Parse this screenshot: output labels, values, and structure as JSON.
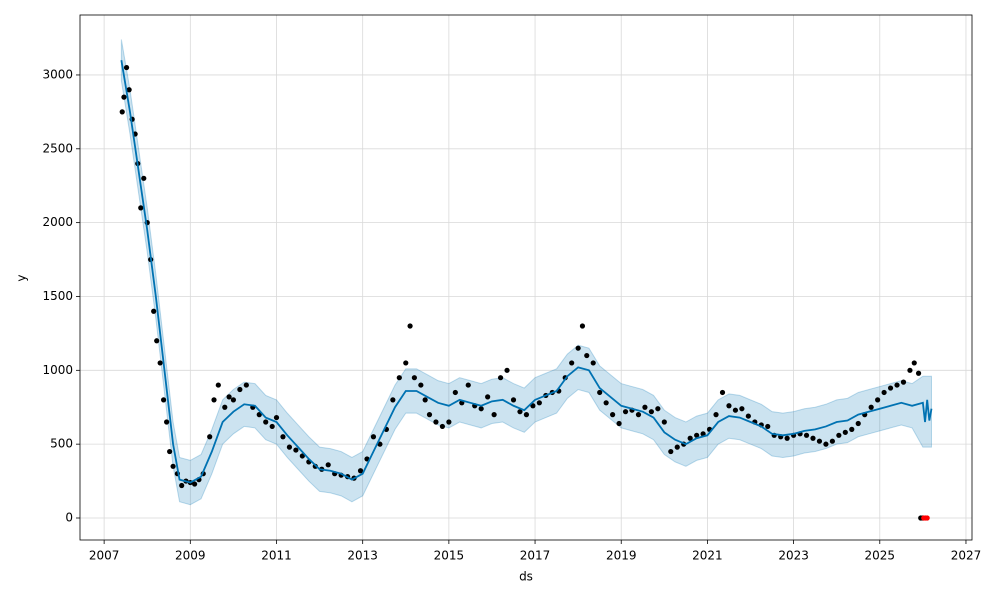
{
  "chart_data": {
    "type": "forecast",
    "x_label": "ds",
    "y_label": "y",
    "xlim": [
      2006.44,
      2027.14
    ],
    "ylim": [
      -149,
      3406
    ],
    "xticks": [
      2007,
      2009,
      2011,
      2013,
      2015,
      2017,
      2019,
      2021,
      2023,
      2025,
      2027
    ],
    "yticks": [
      0,
      500,
      1000,
      1500,
      2000,
      2500,
      3000
    ],
    "grid": true,
    "observed": {
      "color": "#000000",
      "x": [
        2007.42,
        2007.46,
        2007.52,
        2007.58,
        2007.65,
        2007.72,
        2007.78,
        2007.85,
        2007.92,
        2008.0,
        2008.08,
        2008.15,
        2008.22,
        2008.3,
        2008.38,
        2008.45,
        2008.52,
        2008.6,
        2008.7,
        2008.8,
        2008.9,
        2009.0,
        2009.1,
        2009.2,
        2009.3,
        2009.45,
        2009.55,
        2009.65,
        2009.8,
        2009.9,
        2010.0,
        2010.15,
        2010.3,
        2010.45,
        2010.6,
        2010.75,
        2010.9,
        2011.0,
        2011.15,
        2011.3,
        2011.45,
        2011.6,
        2011.75,
        2011.9,
        2012.05,
        2012.2,
        2012.35,
        2012.5,
        2012.65,
        2012.8,
        2012.95,
        2013.1,
        2013.25,
        2013.4,
        2013.55,
        2013.7,
        2013.85,
        2014.0,
        2014.1,
        2014.2,
        2014.35,
        2014.45,
        2014.55,
        2014.7,
        2014.85,
        2015.0,
        2015.15,
        2015.3,
        2015.45,
        2015.6,
        2015.75,
        2015.9,
        2016.05,
        2016.2,
        2016.35,
        2016.5,
        2016.65,
        2016.8,
        2016.95,
        2017.1,
        2017.25,
        2017.4,
        2017.55,
        2017.7,
        2017.85,
        2018.0,
        2018.1,
        2018.2,
        2018.35,
        2018.5,
        2018.65,
        2018.8,
        2018.95,
        2019.1,
        2019.25,
        2019.4,
        2019.55,
        2019.7,
        2019.85,
        2020.0,
        2020.15,
        2020.3,
        2020.45,
        2020.6,
        2020.75,
        2020.9,
        2021.05,
        2021.2,
        2021.35,
        2021.5,
        2021.65,
        2021.8,
        2021.95,
        2022.1,
        2022.25,
        2022.4,
        2022.55,
        2022.7,
        2022.85,
        2023.0,
        2023.15,
        2023.3,
        2023.45,
        2023.6,
        2023.75,
        2023.9,
        2024.05,
        2024.2,
        2024.35,
        2024.5,
        2024.65,
        2024.8,
        2024.95,
        2025.1,
        2025.25,
        2025.4,
        2025.55,
        2025.7,
        2025.8,
        2025.9,
        2025.95,
        2026.0
      ],
      "values": [
        2750,
        2850,
        3050,
        2900,
        2700,
        2600,
        2400,
        2100,
        2300,
        2000,
        1750,
        1400,
        1200,
        1050,
        800,
        650,
        450,
        350,
        300,
        220,
        250,
        240,
        230,
        260,
        300,
        550,
        800,
        900,
        750,
        820,
        800,
        870,
        900,
        750,
        700,
        650,
        620,
        680,
        550,
        480,
        460,
        420,
        380,
        350,
        330,
        360,
        300,
        290,
        280,
        270,
        320,
        400,
        550,
        500,
        600,
        800,
        950,
        1050,
        1300,
        950,
        900,
        800,
        700,
        650,
        620,
        650,
        850,
        780,
        900,
        760,
        740,
        820,
        700,
        950,
        1000,
        800,
        720,
        700,
        760,
        780,
        830,
        850,
        860,
        950,
        1050,
        1150,
        1300,
        1100,
        1050,
        850,
        780,
        700,
        640,
        720,
        730,
        700,
        750,
        720,
        740,
        650,
        450,
        480,
        500,
        540,
        560,
        570,
        600,
        700,
        850,
        760,
        730,
        740,
        690,
        650,
        630,
        620,
        560,
        550,
        540,
        560,
        570,
        560,
        540,
        520,
        500,
        520,
        560,
        580,
        600,
        640,
        700,
        750,
        800,
        850,
        880,
        900,
        920,
        1000,
        1050,
        980,
        0,
        0
      ]
    },
    "future": {
      "color": "#ff0000",
      "x": [
        2026.02,
        2026.06,
        2026.1
      ],
      "values": [
        0,
        0,
        0
      ]
    },
    "forecast": {
      "color": "#0072B2",
      "band_color": "#0072B2",
      "x": [
        2007.4,
        2007.6,
        2007.8,
        2008.0,
        2008.2,
        2008.4,
        2008.6,
        2008.75,
        2009.0,
        2009.25,
        2009.5,
        2009.75,
        2010.0,
        2010.25,
        2010.5,
        2010.75,
        2011.0,
        2011.25,
        2011.5,
        2011.75,
        2012.0,
        2012.25,
        2012.5,
        2012.75,
        2013.0,
        2013.25,
        2013.5,
        2013.75,
        2014.0,
        2014.25,
        2014.5,
        2014.75,
        2015.0,
        2015.25,
        2015.5,
        2015.75,
        2016.0,
        2016.25,
        2016.5,
        2016.75,
        2017.0,
        2017.25,
        2017.5,
        2017.75,
        2018.0,
        2018.25,
        2018.5,
        2018.75,
        2019.0,
        2019.25,
        2019.5,
        2019.75,
        2020.0,
        2020.25,
        2020.5,
        2020.75,
        2021.0,
        2021.25,
        2021.5,
        2021.75,
        2022.0,
        2022.25,
        2022.5,
        2022.75,
        2023.0,
        2023.25,
        2023.5,
        2023.75,
        2024.0,
        2024.25,
        2024.5,
        2024.75,
        2025.0,
        2025.25,
        2025.5,
        2025.75,
        2026.0,
        2026.05,
        2026.1,
        2026.15,
        2026.2
      ],
      "values": [
        3100,
        2750,
        2350,
        1950,
        1500,
        1000,
        500,
        260,
        240,
        280,
        450,
        650,
        720,
        770,
        760,
        680,
        650,
        560,
        480,
        400,
        330,
        320,
        300,
        260,
        300,
        450,
        600,
        750,
        860,
        860,
        820,
        780,
        760,
        800,
        780,
        760,
        790,
        800,
        760,
        730,
        800,
        830,
        860,
        960,
        1020,
        1000,
        880,
        820,
        760,
        740,
        720,
        680,
        580,
        530,
        500,
        540,
        560,
        650,
        690,
        680,
        650,
        620,
        570,
        560,
        570,
        590,
        600,
        620,
        650,
        660,
        700,
        720,
        740,
        760,
        780,
        760,
        780,
        650,
        800,
        660,
        740
      ],
      "upper": [
        3240,
        2900,
        2500,
        2100,
        1650,
        1150,
        650,
        410,
        390,
        430,
        600,
        800,
        870,
        920,
        910,
        830,
        800,
        710,
        630,
        550,
        480,
        470,
        450,
        410,
        450,
        600,
        750,
        900,
        1010,
        1010,
        970,
        930,
        910,
        950,
        930,
        910,
        940,
        950,
        910,
        880,
        950,
        980,
        1010,
        1110,
        1170,
        1150,
        1030,
        970,
        910,
        890,
        870,
        830,
        730,
        680,
        650,
        690,
        710,
        800,
        840,
        830,
        800,
        770,
        720,
        710,
        720,
        740,
        750,
        770,
        800,
        810,
        850,
        870,
        890,
        910,
        930,
        910,
        960,
        960,
        960,
        960,
        960
      ],
      "lower": [
        2960,
        2600,
        2200,
        1800,
        1350,
        850,
        350,
        110,
        90,
        130,
        300,
        500,
        570,
        620,
        610,
        530,
        500,
        410,
        330,
        250,
        180,
        170,
        150,
        110,
        150,
        300,
        450,
        600,
        710,
        710,
        670,
        630,
        610,
        650,
        630,
        610,
        640,
        650,
        610,
        580,
        650,
        680,
        710,
        810,
        870,
        850,
        730,
        670,
        610,
        590,
        570,
        530,
        430,
        380,
        350,
        390,
        410,
        500,
        540,
        530,
        500,
        470,
        420,
        410,
        420,
        440,
        450,
        470,
        500,
        510,
        550,
        570,
        590,
        610,
        630,
        610,
        480,
        480,
        480,
        480,
        480
      ]
    }
  }
}
